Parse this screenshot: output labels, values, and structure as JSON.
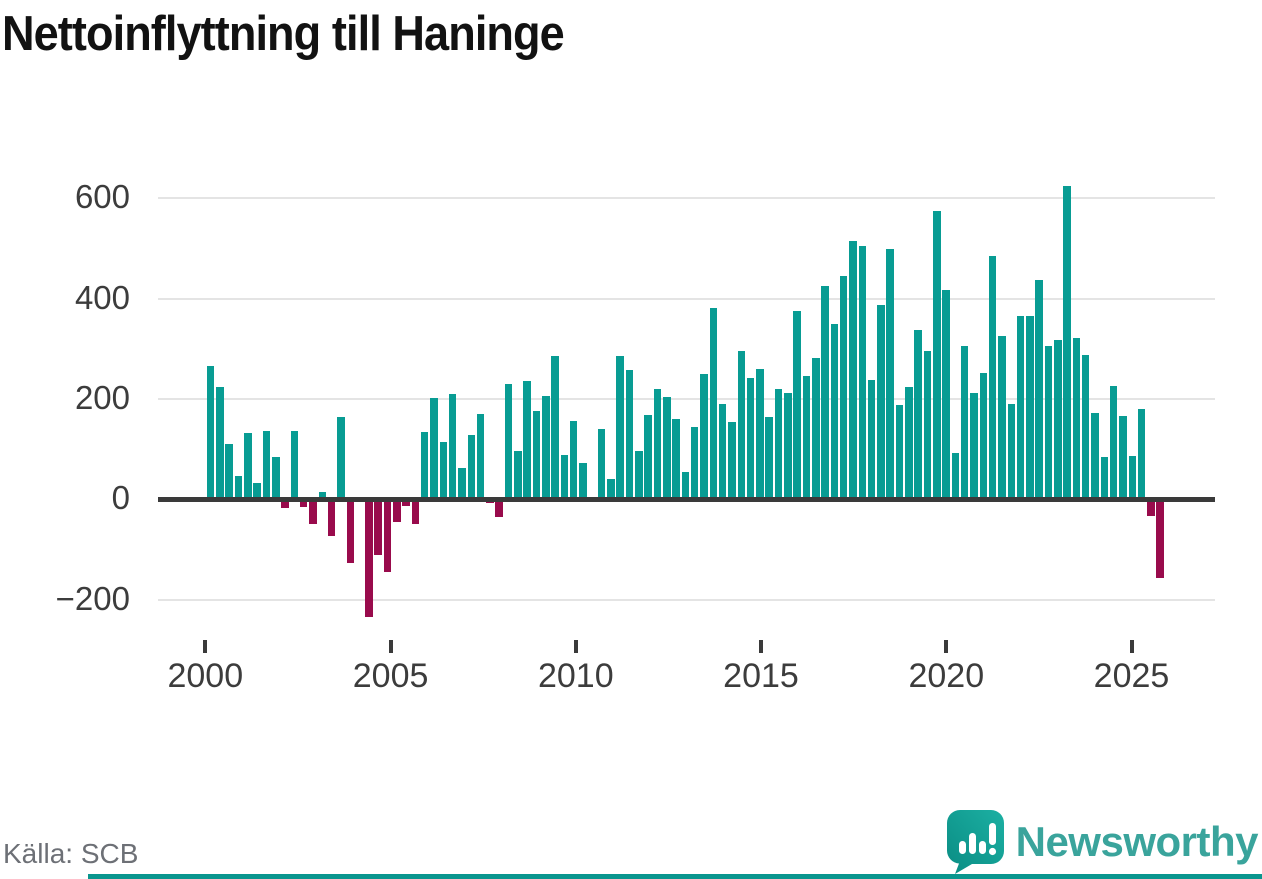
{
  "title": "Nettoinflyttning till Haninge",
  "source": "Källa: SCB",
  "branding": {
    "wordmark": "Newsworthy",
    "logo_icon": "speech-bubble-bar-chart-icon"
  },
  "colors": {
    "positive_bar": "#089c93",
    "negative_bar": "#990b4c",
    "gridline": "#e4e4e4",
    "zero_axis": "#3a3a3a",
    "axis_text": "#3c3c3c",
    "source_text": "#6d7076",
    "brand_teal": "#3aa49c",
    "accent_strip": "#0a968e"
  },
  "chart_data": {
    "type": "bar",
    "title": "Nettoinflyttning till Haninge",
    "xlabel": "",
    "ylabel": "",
    "frequency": "quarterly",
    "start_period": "2000-Q1",
    "end_period": "2025-Q3",
    "grid": "horizontal",
    "ylim": [
      -260,
      655
    ],
    "y_ticks": [
      600,
      400,
      200,
      0,
      -200
    ],
    "y_tick_labels": [
      "600",
      "400",
      "200",
      "0",
      "−200"
    ],
    "x_ticks": [
      2000,
      2005,
      2010,
      2015,
      2020,
      2025
    ],
    "x_tick_labels": [
      "2000",
      "2005",
      "2010",
      "2015",
      "2020",
      "2025"
    ],
    "values": [
      265,
      225,
      110,
      47,
      132,
      33,
      137,
      85,
      -18,
      136,
      -16,
      -49,
      15,
      -74,
      165,
      -128,
      0,
      -235,
      -112,
      -145,
      -45,
      -13,
      -49,
      134,
      203,
      114,
      210,
      62,
      128,
      170,
      -8,
      -35,
      231,
      97,
      236,
      177,
      207,
      285,
      89,
      157,
      73,
      0,
      140,
      40,
      285,
      258,
      97,
      169,
      220,
      204,
      161,
      54,
      144,
      250,
      382,
      191,
      155,
      295,
      241,
      259,
      165,
      221,
      213,
      376,
      245,
      281,
      426,
      350,
      445,
      515,
      506,
      237,
      388,
      500,
      188,
      225,
      338,
      296,
      575,
      417,
      93,
      306,
      212,
      252,
      486,
      326,
      190,
      366,
      365,
      438,
      305,
      317,
      625,
      322,
      287,
      172,
      84,
      227,
      167,
      87,
      181,
      -33,
      -157
    ]
  }
}
